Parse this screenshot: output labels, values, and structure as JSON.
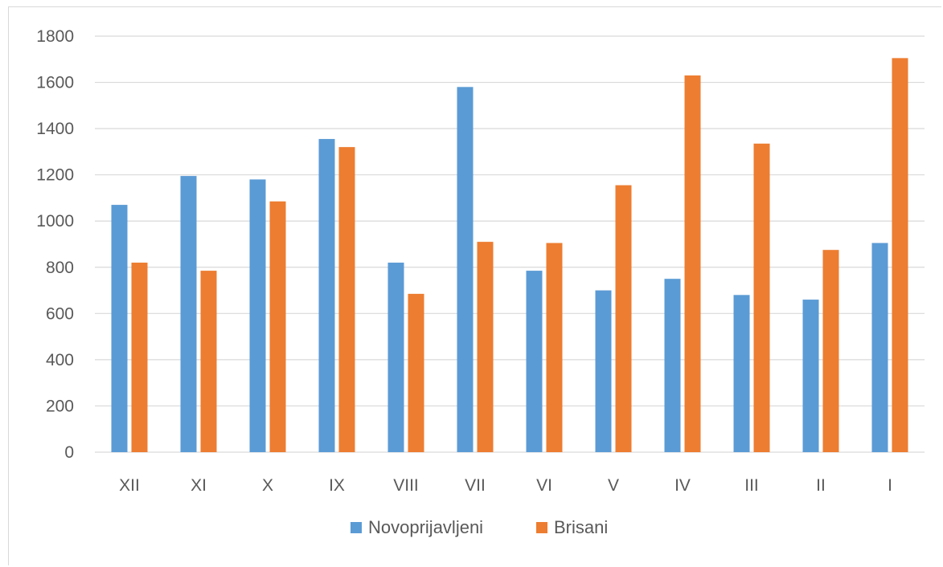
{
  "chart_data": {
    "type": "bar",
    "title": "",
    "xlabel": "",
    "ylabel": "",
    "ylim": [
      0,
      1800
    ],
    "yticks": [
      0,
      200,
      400,
      600,
      800,
      1000,
      1200,
      1400,
      1600,
      1800
    ],
    "grid": true,
    "legend_position": "bottom",
    "categories": [
      "XII",
      "XI",
      "X",
      "IX",
      "VIII",
      "VII",
      "VI",
      "V",
      "IV",
      "III",
      "II",
      "I"
    ],
    "series": [
      {
        "name": "Novoprijavljeni",
        "color": "#5b9bd5",
        "values": [
          1070,
          1195,
          1180,
          1355,
          820,
          1580,
          785,
          700,
          750,
          680,
          660,
          905
        ]
      },
      {
        "name": "Brisani",
        "color": "#ed7d31",
        "values": [
          820,
          785,
          1085,
          1320,
          685,
          910,
          905,
          1155,
          1630,
          1335,
          875,
          1705
        ]
      }
    ]
  }
}
